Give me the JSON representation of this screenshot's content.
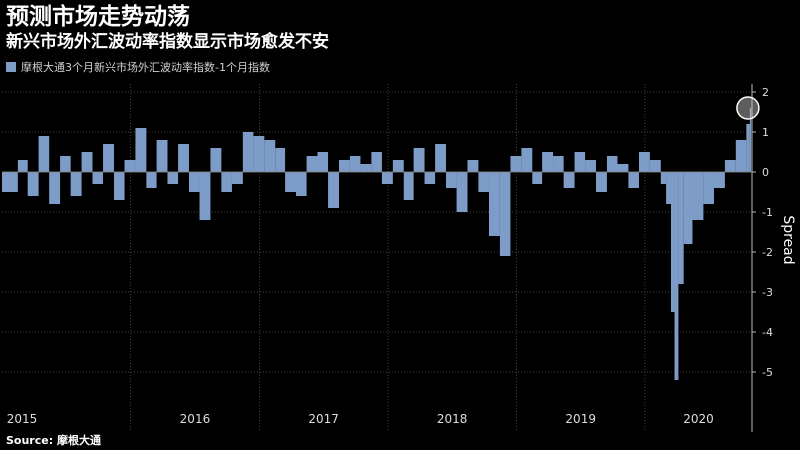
{
  "header": {
    "title": "预测市场走势动荡",
    "subtitle": "新兴市场外汇波动率指数显示市场愈发不安"
  },
  "source": "Source: 摩根大通",
  "colors": {
    "background": "#000000",
    "bar": "#7d9dc8",
    "grid": "#555555",
    "highlight_circle": "#cfcfcf"
  },
  "chart_data": {
    "type": "bar",
    "ylabel": "Spread",
    "ylim": [
      -5.6,
      2.2
    ],
    "y_ticks": [
      2,
      1,
      0,
      -1,
      -2,
      -3,
      -4,
      -5
    ],
    "y_tick_labels": [
      "2",
      "1",
      "0",
      "-1",
      "-2",
      "-3",
      "-4",
      "-5"
    ],
    "x_tick_labels": [
      "2015",
      "2016",
      "2017",
      "2018",
      "2019",
      "2020"
    ],
    "x_year_starts": [
      "2015-01-01",
      "2016-01-01",
      "2017-01-01",
      "2018-01-01",
      "2019-01-01",
      "2020-01-01"
    ],
    "xlim": [
      "2015-01-01",
      "2020-10-31"
    ],
    "grid": true,
    "legend": "top-left",
    "series": [
      {
        "name": "摩根大通3个月新兴市场外汇波动率指数-1个月指数",
        "x": [
          "2015-01-01",
          "2015-02-15",
          "2015-03-15",
          "2015-04-15",
          "2015-05-15",
          "2015-06-15",
          "2015-07-15",
          "2015-08-15",
          "2015-09-15",
          "2015-10-15",
          "2015-11-15",
          "2015-12-15",
          "2016-01-15",
          "2016-02-15",
          "2016-03-15",
          "2016-04-15",
          "2016-05-15",
          "2016-06-15",
          "2016-07-15",
          "2016-08-15",
          "2016-09-15",
          "2016-10-15",
          "2016-11-15",
          "2016-12-15",
          "2017-01-15",
          "2017-02-15",
          "2017-03-15",
          "2017-04-15",
          "2017-05-15",
          "2017-06-15",
          "2017-07-15",
          "2017-08-15",
          "2017-09-15",
          "2017-10-15",
          "2017-11-15",
          "2017-12-15",
          "2018-01-15",
          "2018-02-15",
          "2018-03-15",
          "2018-04-15",
          "2018-05-15",
          "2018-06-15",
          "2018-07-15",
          "2018-08-15",
          "2018-09-15",
          "2018-10-15",
          "2018-11-15",
          "2018-12-15",
          "2019-01-15",
          "2019-02-15",
          "2019-03-15",
          "2019-04-15",
          "2019-05-15",
          "2019-06-15",
          "2019-07-15",
          "2019-08-15",
          "2019-09-15",
          "2019-10-15",
          "2019-11-15",
          "2019-12-15",
          "2020-01-15",
          "2020-02-15",
          "2020-03-01",
          "2020-03-15",
          "2020-03-25",
          "2020-04-05",
          "2020-04-20",
          "2020-05-15",
          "2020-06-15",
          "2020-07-15",
          "2020-08-15",
          "2020-09-15",
          "2020-10-15",
          "2020-10-25"
        ],
        "values": [
          -0.5,
          0.3,
          -0.6,
          0.9,
          -0.8,
          0.4,
          -0.6,
          0.5,
          -0.3,
          0.7,
          -0.7,
          0.3,
          1.1,
          -0.4,
          0.8,
          -0.3,
          0.7,
          -0.5,
          -1.2,
          0.6,
          -0.5,
          -0.3,
          1.0,
          0.9,
          0.8,
          0.6,
          -0.5,
          -0.6,
          0.4,
          0.5,
          -0.9,
          0.3,
          0.4,
          0.2,
          0.5,
          -0.3,
          0.3,
          -0.7,
          0.6,
          -0.3,
          0.7,
          -0.4,
          -1.0,
          0.3,
          -0.5,
          -1.6,
          -2.1,
          0.4,
          0.6,
          -0.3,
          0.5,
          0.4,
          -0.4,
          0.5,
          0.3,
          -0.5,
          0.4,
          0.2,
          -0.4,
          0.5,
          0.3,
          -0.3,
          -0.8,
          -3.5,
          -5.2,
          -2.8,
          -1.8,
          -1.2,
          -0.8,
          -0.4,
          0.3,
          0.8,
          1.2,
          1.6
        ]
      }
    ]
  }
}
